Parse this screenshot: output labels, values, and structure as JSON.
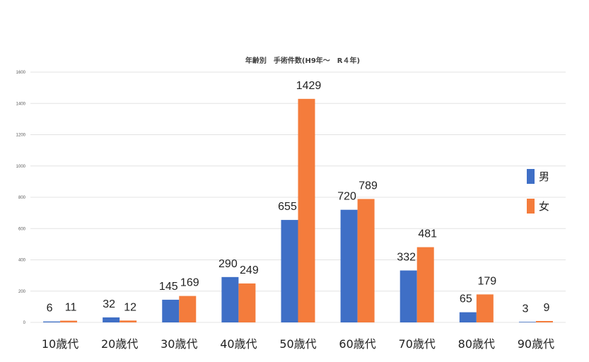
{
  "chart_data": {
    "type": "bar",
    "title": "年齢別　手術件数(H9年〜　R４年)",
    "categories": [
      "10歳代",
      "20歳代",
      "30歳代",
      "40歳代",
      "50歳代",
      "60歳代",
      "70歳代",
      "80歳代",
      "90歳代"
    ],
    "series": [
      {
        "name": "男",
        "color": "#3f6fc6",
        "values": [
          6,
          32,
          145,
          290,
          655,
          720,
          332,
          65,
          3
        ]
      },
      {
        "name": "女",
        "color": "#f47c3c",
        "values": [
          11,
          12,
          169,
          249,
          1429,
          789,
          481,
          179,
          9
        ]
      }
    ],
    "yticks": [
      "0",
      "200",
      "400",
      "600",
      "800",
      "1000",
      "1200",
      "1400",
      "1600"
    ],
    "ylim": [
      0,
      1600
    ],
    "xlabel": "",
    "ylabel": "",
    "grid": true,
    "legend_position": "right"
  }
}
